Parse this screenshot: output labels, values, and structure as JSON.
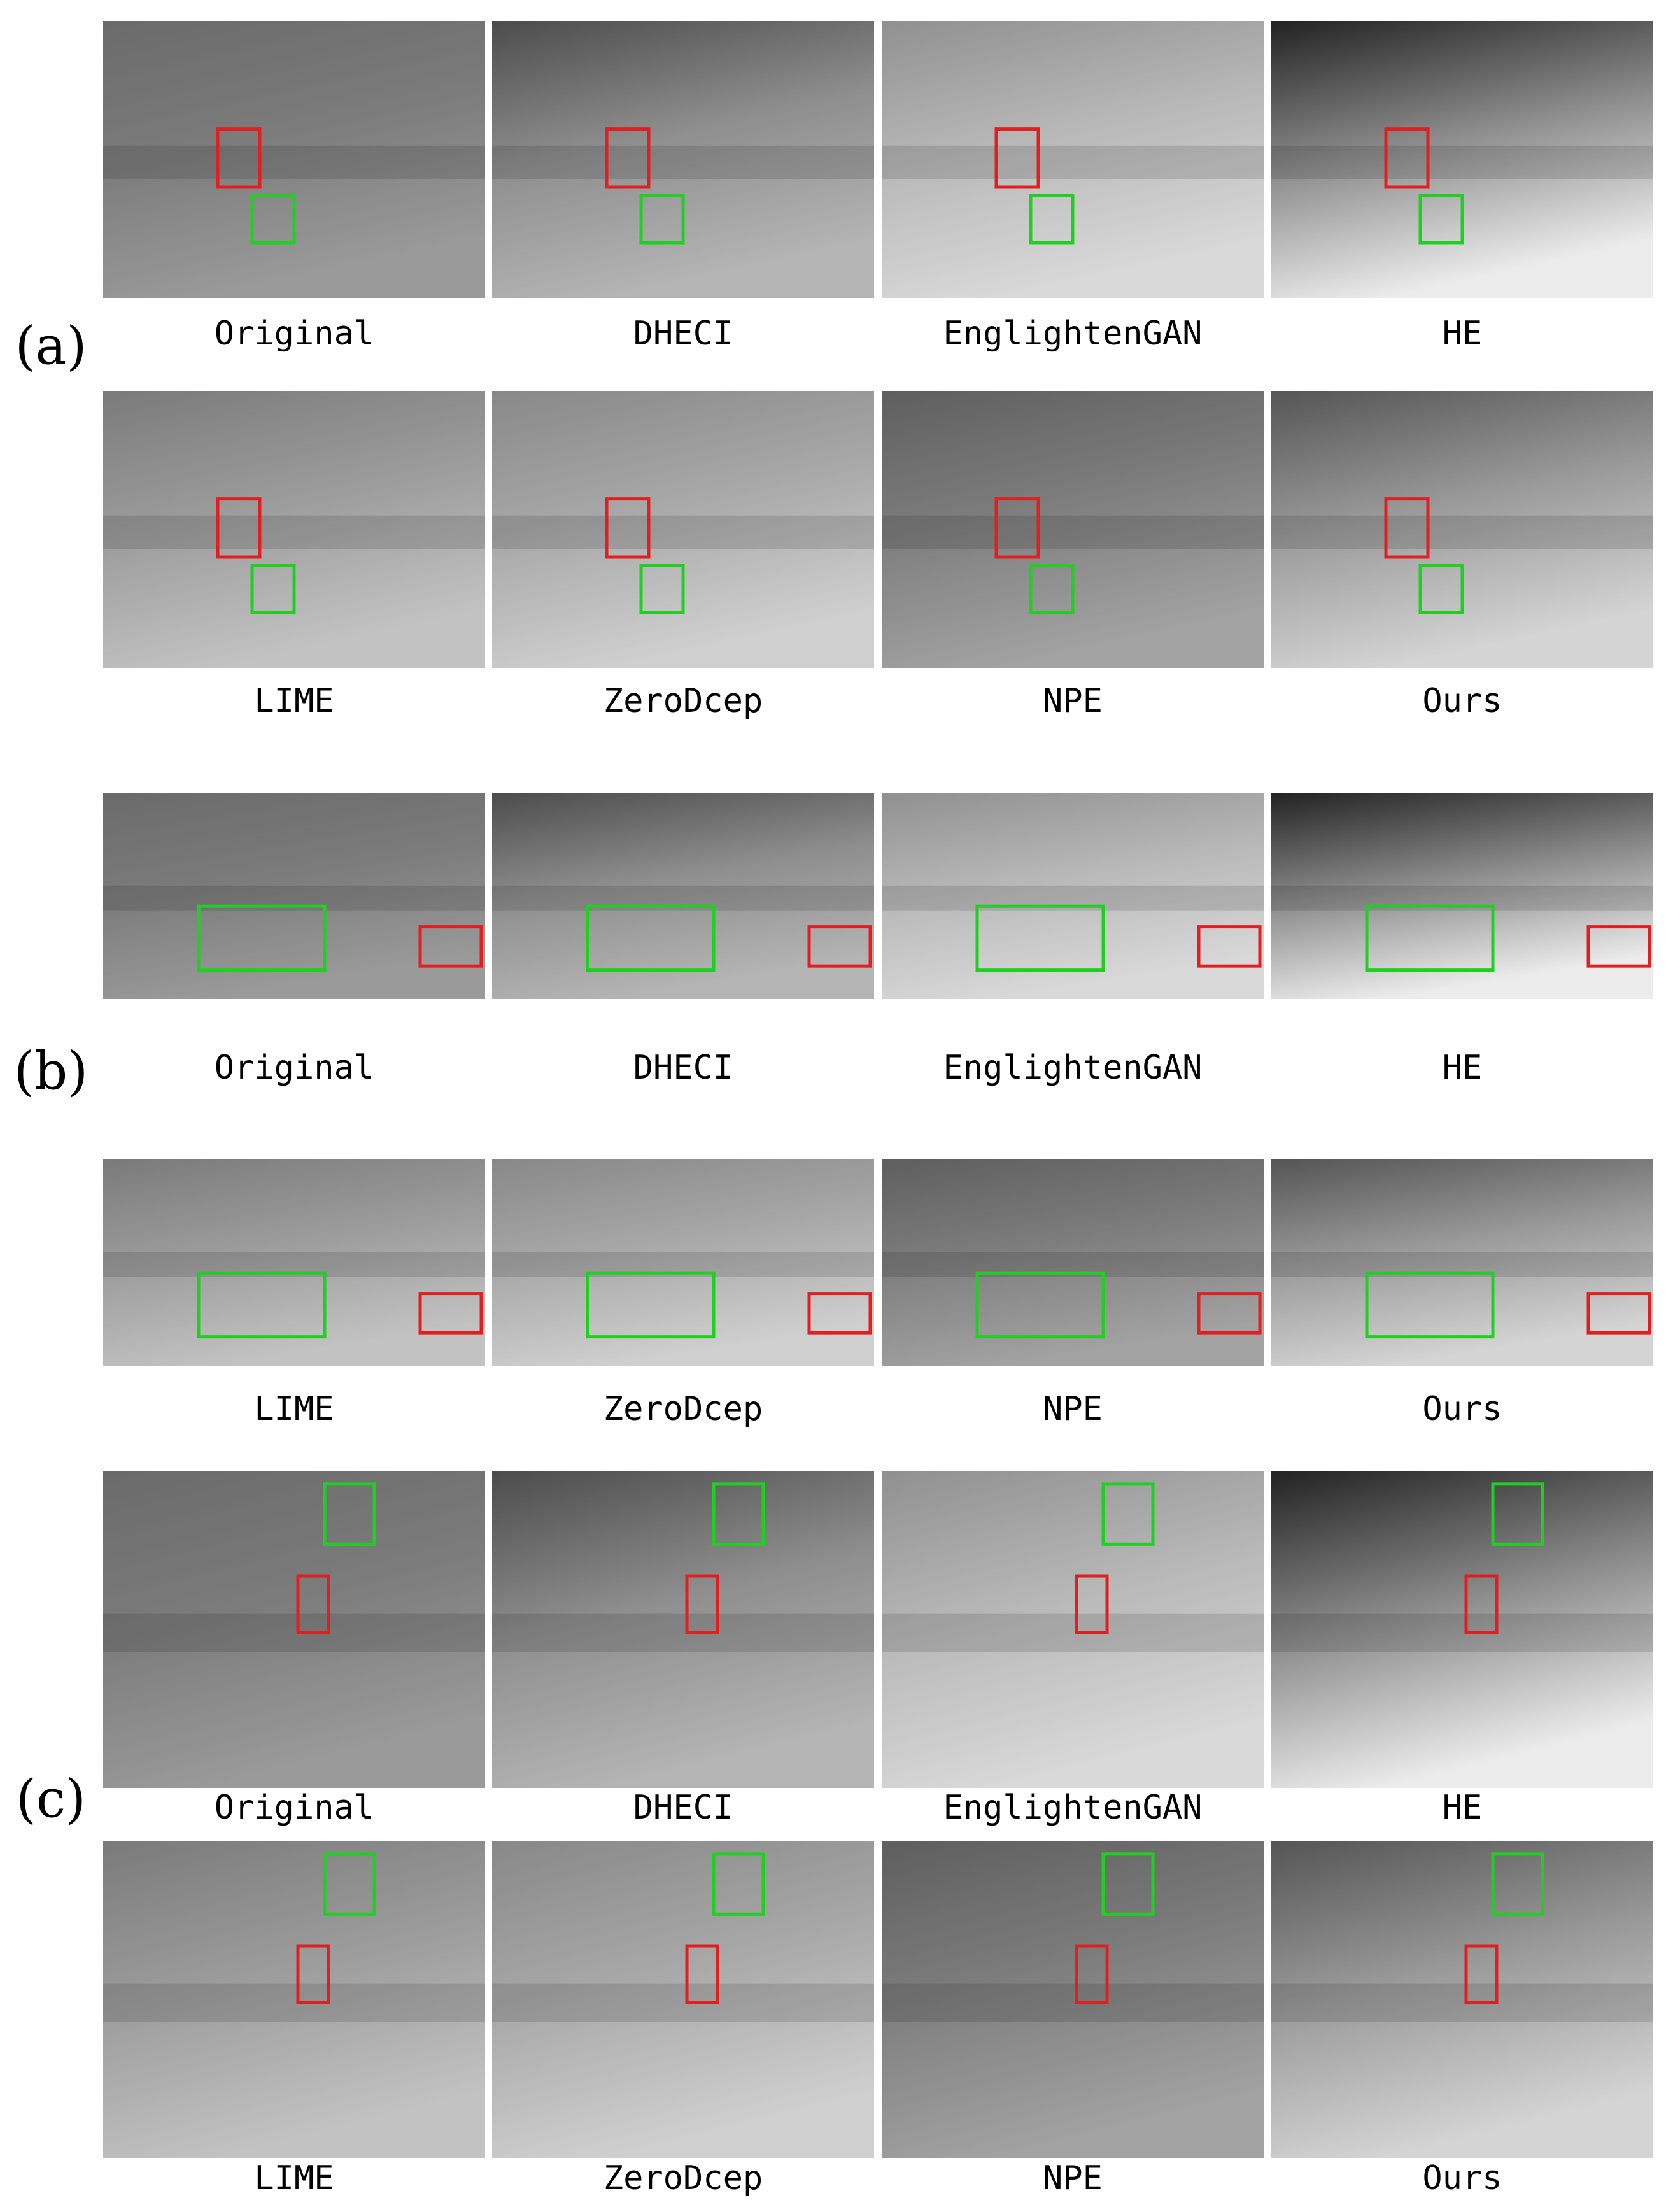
{
  "figure": {
    "groups": [
      {
        "label": "(a)",
        "rows": [
          [
            "Original",
            "DHECI",
            "EnglightenGAN",
            "HE"
          ],
          [
            "LIME",
            "ZeroDcep",
            "NPE",
            "Ours"
          ]
        ]
      },
      {
        "label": "(b)",
        "rows": [
          [
            "Original",
            "DHECI",
            "EnglightenGAN",
            "HE"
          ],
          [
            "LIME",
            "ZeroDcep",
            "NPE",
            "Ours"
          ]
        ]
      },
      {
        "label": "(c)",
        "rows": [
          [
            "Original",
            "DHECI",
            "EnglightenGAN",
            "HE"
          ],
          [
            "LIME",
            "ZeroDcep",
            "NPE",
            "Ours"
          ]
        ]
      }
    ]
  }
}
